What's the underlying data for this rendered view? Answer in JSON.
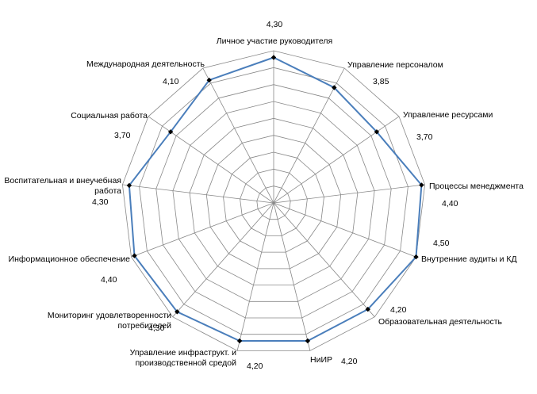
{
  "chart_data": {
    "type": "radar",
    "categories": [
      "Личное участие руководителя",
      "Управление персоналом",
      "Управление ресурсами",
      "Процессы менеджмента",
      "Внутренние аудиты и КД",
      "Образовательная деятельность",
      "НиИР",
      "Управление инфраструкт. и производственной средой",
      "Мониторинг удовлетворенности потребителей",
      "Информационное обеспечение",
      "Воспитательная и внеучебная работа",
      "Социальная работа",
      "Международная деятельность"
    ],
    "values": [
      4.3,
      3.85,
      3.7,
      4.4,
      4.5,
      4.2,
      4.2,
      4.2,
      4.3,
      4.4,
      4.3,
      3.7,
      4.1
    ],
    "value_labels": [
      "4,30",
      "3,85",
      "3,70",
      "4,40",
      "4,50",
      "4,20",
      "4,20",
      "4,20",
      "4,30",
      "4,40",
      "4,30",
      "3,70",
      "4,10"
    ],
    "rmin": 0,
    "rmax": 4.5,
    "rings": 9,
    "grid": true,
    "legend": "none",
    "series_color": "#4a7ebb",
    "grid_color": "#888888",
    "marker_color": "#000000"
  }
}
